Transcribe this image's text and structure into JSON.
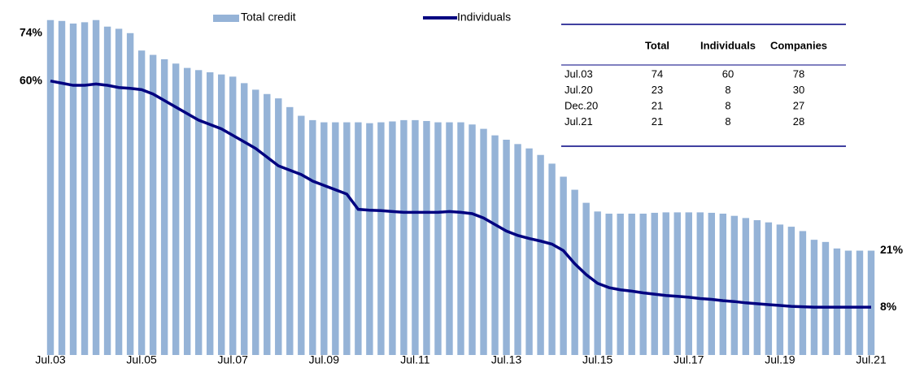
{
  "chart_data": {
    "type": "bar",
    "categories": [
      "Jul.03",
      null,
      null,
      null,
      null,
      null,
      null,
      null,
      "Jul.05",
      null,
      null,
      null,
      null,
      null,
      null,
      null,
      "Jul.07",
      null,
      null,
      null,
      null,
      null,
      null,
      null,
      "Jul.09",
      null,
      null,
      null,
      null,
      null,
      null,
      null,
      "Jul.11",
      null,
      null,
      null,
      null,
      null,
      null,
      null,
      "Jul.13",
      null,
      null,
      null,
      null,
      null,
      null,
      null,
      "Jul.15",
      null,
      null,
      null,
      null,
      null,
      null,
      null,
      "Jul.17",
      null,
      null,
      null,
      null,
      null,
      null,
      null,
      "Jul.19",
      null,
      null,
      null,
      null,
      null,
      null,
      null,
      "Jul.21"
    ],
    "series": [
      {
        "name": "Total credit",
        "type": "bar",
        "color": "#95b3d7",
        "values": [
          74,
          73.8,
          73.2,
          73.5,
          74,
          72.5,
          72,
          71,
          67,
          66,
          65,
          64,
          63,
          62.5,
          62,
          61.5,
          61,
          59.5,
          58,
          57,
          56,
          54,
          52,
          51,
          50.5,
          50.5,
          50.5,
          50.5,
          50.3,
          50.5,
          50.7,
          51,
          51,
          50.8,
          50.5,
          50.5,
          50.5,
          50,
          49,
          47.5,
          46.5,
          45.5,
          44.5,
          43,
          41,
          38,
          35,
          32,
          30,
          29.5,
          29.5,
          29.5,
          29.5,
          29.7,
          29.8,
          29.8,
          29.8,
          29.8,
          29.7,
          29.5,
          29,
          28.5,
          28,
          27.5,
          27,
          26.5,
          25.5,
          23.5,
          23,
          21.5,
          21,
          21,
          21
        ],
        "value_labels": [
          "74%",
          null,
          null,
          null,
          null,
          null,
          null,
          null,
          null,
          null,
          null,
          null,
          null,
          null,
          null,
          null,
          null,
          null,
          null,
          null,
          null,
          null,
          null,
          null,
          null,
          null,
          null,
          null,
          null,
          null,
          null,
          null,
          null,
          null,
          null,
          null,
          null,
          null,
          null,
          null,
          null,
          null,
          null,
          null,
          null,
          null,
          null,
          null,
          null,
          null,
          null,
          null,
          null,
          null,
          null,
          null,
          null,
          null,
          null,
          null,
          null,
          null,
          null,
          null,
          null,
          null,
          null,
          null,
          null,
          null,
          null,
          null,
          "21%"
        ]
      },
      {
        "name": "Individuals",
        "type": "line",
        "color": "#000080",
        "values": [
          60,
          59.5,
          59,
          59,
          59.3,
          59,
          58.5,
          58.3,
          58,
          57,
          55.5,
          54,
          52.5,
          51,
          50,
          49,
          47.5,
          46,
          44.5,
          42.5,
          40.5,
          39.5,
          38.5,
          37,
          36,
          35,
          34,
          30.5,
          30.3,
          30.2,
          30,
          29.8,
          29.8,
          29.8,
          29.8,
          30,
          29.8,
          29.5,
          28.5,
          27,
          25.5,
          24.5,
          23.8,
          23.2,
          22.5,
          21,
          18,
          15.5,
          13.5,
          12.5,
          12,
          11.7,
          11.3,
          11,
          10.7,
          10.5,
          10.3,
          10,
          9.8,
          9.5,
          9.3,
          9,
          8.8,
          8.6,
          8.4,
          8.2,
          8.1,
          8,
          8,
          8,
          8,
          8,
          8
        ],
        "value_labels": [
          "60%",
          null,
          null,
          null,
          null,
          null,
          null,
          null,
          null,
          null,
          null,
          null,
          null,
          null,
          null,
          null,
          null,
          null,
          null,
          null,
          null,
          null,
          null,
          null,
          null,
          null,
          null,
          null,
          null,
          null,
          null,
          null,
          null,
          null,
          null,
          null,
          null,
          null,
          null,
          null,
          null,
          null,
          null,
          null,
          null,
          null,
          null,
          null,
          null,
          null,
          null,
          null,
          null,
          null,
          null,
          null,
          null,
          null,
          null,
          null,
          null,
          null,
          null,
          null,
          null,
          null,
          null,
          null,
          null,
          null,
          null,
          null,
          "8%"
        ]
      }
    ],
    "ylim": [
      0,
      76
    ],
    "table": {
      "columns": [
        "Total",
        "Individuals",
        "Companies"
      ],
      "rows": [
        [
          "Jul.03",
          74,
          60,
          78
        ],
        [
          "Jul.20",
          23,
          8,
          30
        ],
        [
          "Dec.20",
          21,
          8,
          27
        ],
        [
          "Jul.21",
          21,
          8,
          28
        ]
      ]
    }
  }
}
